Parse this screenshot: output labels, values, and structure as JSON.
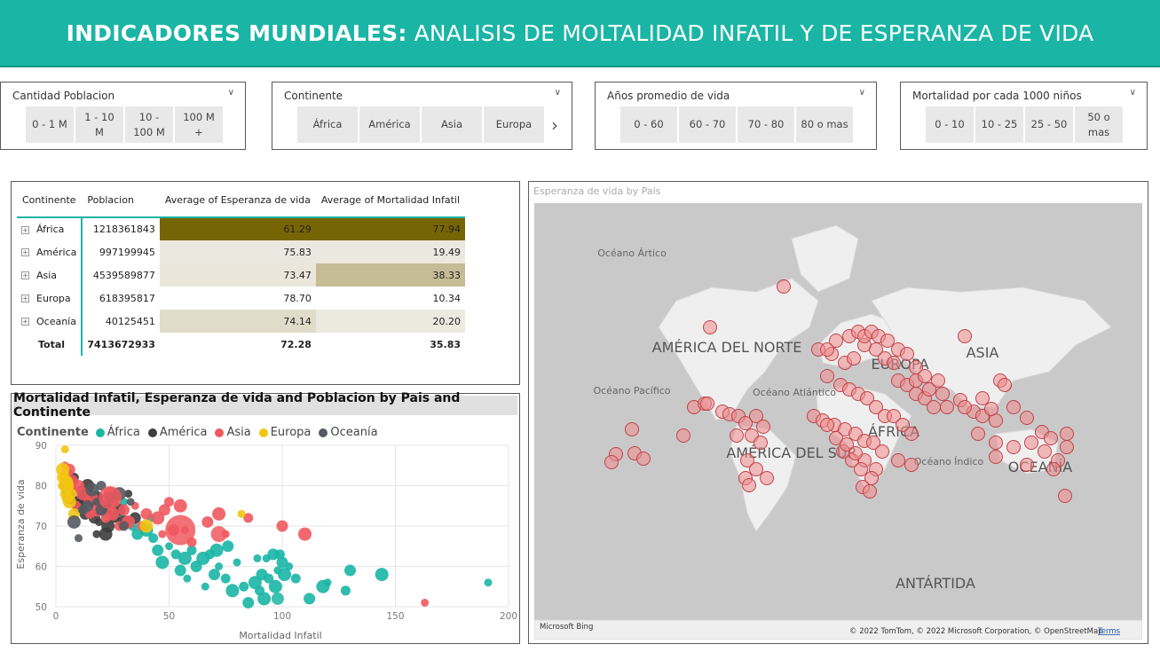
{
  "header": {
    "bold": "INDICADORES MUNDIALES:",
    "rest": "ANALISIS DE MOLTALIDAD INFATIL Y DE ESPERANZA DE VIDA"
  },
  "slicers": [
    {
      "title": "Cantidad Poblacion",
      "options": [
        "0 - 1 M",
        "1 - 10 M",
        "10 - 100 M",
        "100 M +"
      ]
    },
    {
      "title": "Continente",
      "options": [
        "África",
        "América",
        "Asia",
        "Europa"
      ]
    },
    {
      "title": "Años promedio de vida",
      "options": [
        "0 - 60",
        "60 - 70",
        "70 - 80",
        "80 o mas"
      ]
    },
    {
      "title": "Mortalidad por cada 1000 niños",
      "options": [
        "0 - 10",
        "10 - 25",
        "25 - 50",
        "50 o mas"
      ]
    }
  ],
  "table": {
    "headers": [
      "Continente",
      "Poblacion",
      "Average of Esperanza de vida",
      "Average of Mortalidad Infatil"
    ],
    "rows": [
      {
        "name": "África",
        "pop": "1218361843",
        "life": "61.29",
        "mort": "77.94"
      },
      {
        "name": "América",
        "pop": "997199945",
        "life": "75.83",
        "mort": "19.49"
      },
      {
        "name": "Asia",
        "pop": "4539589877",
        "life": "73.47",
        "mort": "38.33"
      },
      {
        "name": "Europa",
        "pop": "618395817",
        "life": "78.70",
        "mort": "10.34"
      },
      {
        "name": "Oceanía",
        "pop": "40125451",
        "life": "74.14",
        "mort": "20.20"
      }
    ],
    "total": {
      "name": "Total",
      "pop": "7413672933",
      "life": "72.28",
      "mort": "35.83"
    }
  },
  "scatter": {
    "title": "Mortalidad Infatil, Esperanza de vida and Poblacion by Pais and Continente",
    "legend_title": "Continente"
  },
  "map": {
    "title": "Esperanza de vida by Pais",
    "labels": {
      "oceano_artico": "Océano Ártico",
      "america_norte": "AMÉRICA DEL NORTE",
      "oceano_pacifico": "Océano Pacífico",
      "oceano_atlantico": "Océano Atlántico",
      "europa": "EUROPA",
      "asia": "ASIA",
      "africa": "ÁFRICA",
      "america_sur": "AMÉRICA DEL SUR",
      "oceano_indico": "Océano Índico",
      "oceania": "OCEANÍA",
      "antartida": "ANTÁRTIDA"
    },
    "bing": "Microsoft Bing",
    "attribution": "© 2022 TomTom, © 2022 Microsoft Corporation, © OpenStreetMap",
    "terms": "Terms"
  },
  "colors": {
    "accent": "#1ab5a5",
    "africa": "#1ab5a5",
    "america": "#3d3d3d",
    "asia": "#f0585e",
    "europa": "#f2c511",
    "oceania": "#555a60"
  },
  "chart_data": {
    "type": "scatter",
    "title": "Mortalidad Infatil, Esperanza de vida and Poblacion by Pais and Continente",
    "xlabel": "Mortalidad Infatil",
    "ylabel": "Esperanza de vida",
    "xlim": [
      0,
      200
    ],
    "ylim": [
      50,
      90
    ],
    "xticks": [
      0,
      50,
      100,
      150,
      200
    ],
    "yticks": [
      50,
      60,
      70,
      80,
      90
    ],
    "grid": true,
    "legend_position": "top-left",
    "series": [
      {
        "name": "África",
        "color": "#1ab5a5",
        "points": [
          [
            191,
            56
          ],
          [
            144,
            58
          ],
          [
            130,
            59
          ],
          [
            128,
            54
          ],
          [
            120,
            56
          ],
          [
            118,
            55
          ],
          [
            112,
            52
          ],
          [
            106,
            57
          ],
          [
            103,
            60
          ],
          [
            101,
            58
          ],
          [
            100,
            61
          ],
          [
            99,
            63
          ],
          [
            98,
            59
          ],
          [
            97,
            55
          ],
          [
            96,
            63
          ],
          [
            94,
            57
          ],
          [
            93,
            62
          ],
          [
            92,
            52
          ],
          [
            91,
            58
          ],
          [
            90,
            54
          ],
          [
            89,
            62
          ],
          [
            88,
            56
          ],
          [
            85,
            51
          ],
          [
            83,
            55
          ],
          [
            80,
            61
          ],
          [
            78,
            54
          ],
          [
            76,
            65
          ],
          [
            75,
            57
          ],
          [
            72,
            60
          ],
          [
            71,
            64
          ],
          [
            70,
            58
          ],
          [
            68,
            63
          ],
          [
            66,
            55
          ],
          [
            65,
            62
          ],
          [
            62,
            60
          ],
          [
            60,
            64
          ],
          [
            58,
            57
          ],
          [
            57,
            62
          ],
          [
            55,
            59
          ],
          [
            53,
            63
          ],
          [
            50,
            65
          ],
          [
            47,
            61
          ],
          [
            45,
            64
          ],
          [
            43,
            67
          ],
          [
            42,
            72
          ],
          [
            40,
            69
          ],
          [
            36,
            68
          ],
          [
            34,
            70
          ],
          [
            30,
            76
          ],
          [
            28,
            74
          ],
          [
            25,
            76
          ],
          [
            22,
            73
          ],
          [
            18,
            74
          ],
          [
            14,
            76
          ],
          [
            12,
            78
          ]
        ]
      },
      {
        "name": "América",
        "color": "#3d3d3d",
        "points": [
          [
            32,
            78
          ],
          [
            30,
            71
          ],
          [
            28,
            74
          ],
          [
            26,
            72
          ],
          [
            24,
            73
          ],
          [
            23,
            70
          ],
          [
            22,
            75
          ],
          [
            20,
            74
          ],
          [
            19,
            71
          ],
          [
            18,
            77
          ],
          [
            17,
            72
          ],
          [
            16,
            76
          ],
          [
            15,
            78
          ],
          [
            14,
            80
          ],
          [
            13,
            73
          ],
          [
            12,
            77
          ],
          [
            11,
            79
          ],
          [
            10,
            75
          ],
          [
            9,
            76
          ],
          [
            8,
            82
          ],
          [
            7,
            78
          ],
          [
            6,
            77
          ],
          [
            5,
            79
          ],
          [
            4,
            80
          ],
          [
            18,
            68
          ],
          [
            22,
            68
          ],
          [
            35,
            72
          ]
        ]
      },
      {
        "name": "Asia",
        "color": "#f0585e",
        "points": [
          [
            163,
            51
          ],
          [
            110,
            68
          ],
          [
            100,
            70
          ],
          [
            85,
            72
          ],
          [
            75,
            68
          ],
          [
            72,
            73
          ],
          [
            67,
            71
          ],
          [
            60,
            66
          ],
          [
            57,
            69
          ],
          [
            55,
            75
          ],
          [
            52,
            69
          ],
          [
            50,
            76
          ],
          [
            47,
            68
          ],
          [
            45,
            72
          ],
          [
            40,
            73
          ],
          [
            38,
            70
          ],
          [
            35,
            75
          ],
          [
            32,
            71
          ],
          [
            30,
            74
          ],
          [
            28,
            70
          ],
          [
            26,
            76
          ],
          [
            25,
            73
          ],
          [
            23,
            77
          ],
          [
            22,
            72
          ],
          [
            20,
            75
          ],
          [
            18,
            74
          ],
          [
            16,
            77
          ],
          [
            15,
            73
          ],
          [
            14,
            76
          ],
          [
            12,
            78
          ],
          [
            10,
            80
          ],
          [
            9,
            75
          ],
          [
            8,
            79
          ],
          [
            7,
            81
          ],
          [
            6,
            84
          ],
          [
            5,
            83
          ],
          [
            4,
            85
          ],
          [
            24,
            78
          ],
          [
            48,
            74
          ]
        ]
      },
      {
        "name": "Europa",
        "color": "#f2c511",
        "points": [
          [
            82,
            73
          ],
          [
            40,
            70
          ],
          [
            8,
            73
          ],
          [
            7,
            78
          ],
          [
            6,
            79
          ],
          [
            5,
            80
          ],
          [
            5,
            81
          ],
          [
            4,
            82
          ],
          [
            4,
            83
          ],
          [
            3,
            84
          ],
          [
            3,
            82
          ],
          [
            3,
            80
          ],
          [
            4,
            89
          ],
          [
            6,
            76
          ],
          [
            5,
            77
          ],
          [
            4,
            78
          ]
        ]
      },
      {
        "name": "Oceanía",
        "color": "#555a60",
        "points": [
          [
            33,
            76
          ],
          [
            28,
            78
          ],
          [
            24,
            77
          ],
          [
            20,
            80
          ],
          [
            18,
            76
          ],
          [
            16,
            79
          ],
          [
            14,
            75
          ],
          [
            12,
            74
          ],
          [
            10,
            67
          ],
          [
            8,
            71
          ],
          [
            20,
            74
          ],
          [
            30,
            70
          ]
        ]
      }
    ]
  }
}
